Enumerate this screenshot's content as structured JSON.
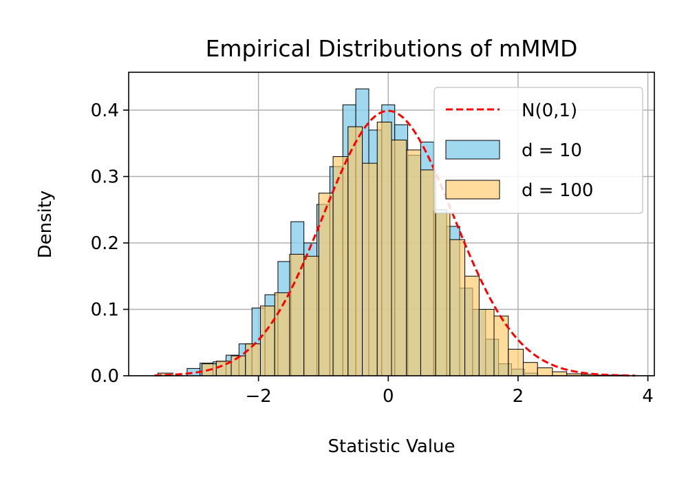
{
  "chart_data": {
    "type": "histogram",
    "title": "Empirical Distributions of mMMD",
    "xlabel": "Statistic Value",
    "ylabel": "Density",
    "xlim": [
      -4.0,
      4.1
    ],
    "ylim": [
      0.0,
      0.457
    ],
    "xticks": [
      -2,
      0,
      2,
      4
    ],
    "xtick_labels": [
      "−2",
      "0",
      "2",
      "4"
    ],
    "yticks": [
      0.0,
      0.1,
      0.2,
      0.3,
      0.4
    ],
    "ytick_labels": [
      "0.0",
      "0.1",
      "0.2",
      "0.3",
      "0.4"
    ],
    "grid": true,
    "legend_position": "top-right",
    "legend": [
      "N(0,1)",
      "d = 10",
      "d = 100"
    ],
    "series": [
      {
        "name": "d = 10",
        "color": "#87CEEB",
        "bin_edges": [
          -3.1,
          -2.9,
          -2.7,
          -2.5,
          -2.3,
          -2.1,
          -1.9,
          -1.7,
          -1.5,
          -1.3,
          -1.1,
          -0.9,
          -0.7,
          -0.5,
          -0.3,
          -0.1,
          0.1,
          0.3,
          0.5,
          0.7,
          0.9,
          1.1,
          1.3,
          1.5,
          1.7,
          1.9,
          2.1,
          2.3,
          2.5,
          2.7,
          2.9
        ],
        "values": [
          0.011,
          0.019,
          0.021,
          0.031,
          0.048,
          0.102,
          0.122,
          0.172,
          0.232,
          0.2,
          0.258,
          0.315,
          0.408,
          0.432,
          0.37,
          0.408,
          0.378,
          0.332,
          0.352,
          0.25,
          0.225,
          0.132,
          0.1,
          0.055,
          0.018,
          0.01,
          0.004,
          0.0,
          0.0,
          0.0
        ]
      },
      {
        "name": "d = 100",
        "color": "#FFC966",
        "bin_edges": [
          -3.55,
          -3.32,
          -3.1,
          -2.87,
          -2.65,
          -2.42,
          -2.2,
          -1.97,
          -1.75,
          -1.52,
          -1.3,
          -1.07,
          -0.85,
          -0.62,
          -0.4,
          -0.17,
          0.05,
          0.28,
          0.5,
          0.73,
          0.95,
          1.18,
          1.4,
          1.63,
          1.85,
          2.08,
          2.3,
          2.53,
          2.75,
          2.98,
          3.2,
          3.43,
          3.65
        ],
        "values": [
          0.004,
          0.0,
          0.0,
          0.018,
          0.022,
          0.03,
          0.048,
          0.105,
          0.125,
          0.183,
          0.18,
          0.275,
          0.33,
          0.375,
          0.32,
          0.382,
          0.355,
          0.34,
          0.31,
          0.245,
          0.205,
          0.15,
          0.1,
          0.09,
          0.04,
          0.02,
          0.012,
          0.006,
          0.003,
          0.002,
          0.001,
          0.001
        ]
      }
    ],
    "reference_curve": {
      "name": "N(0,1)",
      "color": "#ff0000",
      "style": "dashed",
      "x_range": [
        -3.6,
        3.8
      ]
    }
  }
}
